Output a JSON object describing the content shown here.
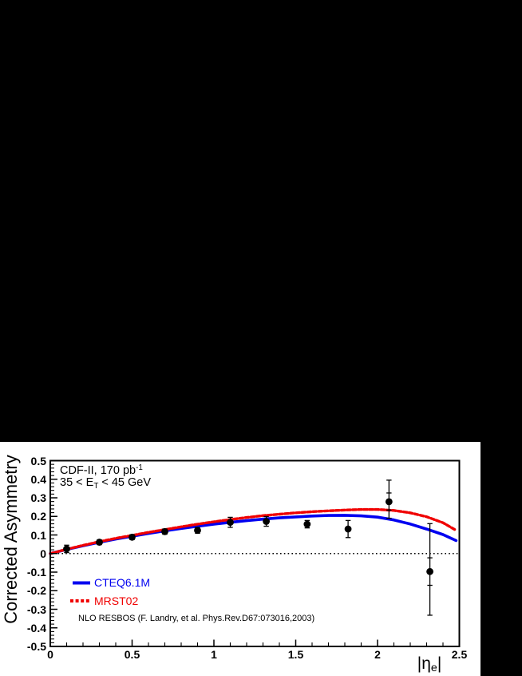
{
  "canvas": {
    "background": "#000000",
    "panel_background": "#ffffff",
    "frame_color": "#000000"
  },
  "chart_data": {
    "type": "line",
    "title": "",
    "ylabel": "Corrected Asymmetry",
    "xlabel_parts": [
      {
        "t": "|"
      },
      {
        "t": "η"
      },
      {
        "t": "e",
        "s": "sub"
      },
      {
        "t": "|"
      }
    ],
    "annotations": [
      {
        "parts": [
          {
            "t": "CDF-II, 170 pb"
          },
          {
            "t": "-1",
            "s": "sup"
          }
        ]
      },
      {
        "parts": [
          {
            "t": "35 < E"
          },
          {
            "t": "T",
            "s": "sub"
          },
          {
            "t": " < 45 GeV"
          }
        ]
      }
    ],
    "footnote": "NLO RESBOS (F. Landry, et al. Phys.Rev.D67:073016,2003)",
    "x_axis": {
      "min": 0,
      "max": 2.5,
      "major_tick_values": [
        0,
        0.5,
        1,
        1.5,
        2,
        2.5
      ],
      "major_tick_labels": [
        "0",
        "0.5",
        "1",
        "1.5",
        "2",
        "2.5"
      ],
      "minor_tick_step": 0.1
    },
    "y_axis": {
      "min": -0.5,
      "max": 0.5,
      "major_tick_values": [
        0.5,
        0.4,
        0.3,
        0.2,
        0.1,
        0,
        -0.1,
        -0.2,
        -0.3,
        -0.4,
        -0.5
      ],
      "major_tick_labels": [
        "0.5",
        "0.4",
        "0.3",
        "0.2",
        "0.1",
        "0",
        "-0.1",
        "-0.2",
        "-0.3",
        "-0.4",
        "-0.5"
      ],
      "minor_tick_step": 0.02
    },
    "zero_line": {
      "y": 0,
      "style": "dotted",
      "color": "#000000"
    },
    "series": [
      {
        "name": "CTEQ6.1M",
        "color": "#0000f0",
        "style": "solid",
        "points": [
          [
            0,
            0
          ],
          [
            0.1,
            0.022
          ],
          [
            0.2,
            0.042
          ],
          [
            0.3,
            0.061
          ],
          [
            0.4,
            0.078
          ],
          [
            0.5,
            0.093
          ],
          [
            0.6,
            0.108
          ],
          [
            0.7,
            0.122
          ],
          [
            0.8,
            0.135
          ],
          [
            0.9,
            0.147
          ],
          [
            1.0,
            0.158
          ],
          [
            1.1,
            0.168
          ],
          [
            1.2,
            0.177
          ],
          [
            1.3,
            0.185
          ],
          [
            1.4,
            0.192
          ],
          [
            1.5,
            0.197
          ],
          [
            1.6,
            0.202
          ],
          [
            1.7,
            0.205
          ],
          [
            1.8,
            0.206
          ],
          [
            1.9,
            0.203
          ],
          [
            2.0,
            0.196
          ],
          [
            2.1,
            0.181
          ],
          [
            2.2,
            0.159
          ],
          [
            2.3,
            0.132
          ],
          [
            2.4,
            0.102
          ],
          [
            2.48,
            0.07
          ]
        ]
      },
      {
        "name": "MRST02",
        "color": "#f00000",
        "style": "dashed",
        "points": [
          [
            0,
            0
          ],
          [
            0.1,
            0.023
          ],
          [
            0.2,
            0.044
          ],
          [
            0.3,
            0.064
          ],
          [
            0.4,
            0.082
          ],
          [
            0.5,
            0.098
          ],
          [
            0.6,
            0.114
          ],
          [
            0.7,
            0.129
          ],
          [
            0.8,
            0.144
          ],
          [
            0.9,
            0.158
          ],
          [
            1.0,
            0.171
          ],
          [
            1.1,
            0.183
          ],
          [
            1.2,
            0.194
          ],
          [
            1.3,
            0.204
          ],
          [
            1.4,
            0.212
          ],
          [
            1.5,
            0.219
          ],
          [
            1.6,
            0.225
          ],
          [
            1.7,
            0.23
          ],
          [
            1.8,
            0.234
          ],
          [
            1.9,
            0.237
          ],
          [
            2.0,
            0.237
          ],
          [
            2.1,
            0.232
          ],
          [
            2.2,
            0.219
          ],
          [
            2.3,
            0.198
          ],
          [
            2.4,
            0.166
          ],
          [
            2.48,
            0.125
          ]
        ]
      }
    ],
    "measurements": {
      "marker": "filled-circle",
      "color": "#000000",
      "points": [
        {
          "x": 0.1,
          "y": 0.025,
          "eu": 0.02,
          "ed": 0.02
        },
        {
          "x": 0.3,
          "y": 0.061,
          "eu": 0.013,
          "ed": 0.013
        },
        {
          "x": 0.5,
          "y": 0.088,
          "eu": 0.013,
          "ed": 0.013
        },
        {
          "x": 0.7,
          "y": 0.118,
          "eu": 0.014,
          "ed": 0.014
        },
        {
          "x": 0.9,
          "y": 0.125,
          "eu": 0.016,
          "ed": 0.016
        },
        {
          "x": 1.1,
          "y": 0.168,
          "eu": 0.027,
          "ed": 0.027
        },
        {
          "x": 1.32,
          "y": 0.173,
          "eu": 0.026,
          "ed": 0.026
        },
        {
          "x": 1.57,
          "y": 0.158,
          "eu": 0.02,
          "ed": 0.02
        },
        {
          "x": 1.82,
          "y": 0.132,
          "eu": 0.046,
          "ed": 0.046
        },
        {
          "x": 2.07,
          "y": 0.279,
          "eu": 0.116,
          "ed": 0.089,
          "inner": [
            0.326,
            0.234
          ]
        },
        {
          "x": 2.32,
          "y": -0.097,
          "eu": 0.258,
          "ed": 0.235,
          "inner": [
            -0.023,
            -0.171
          ]
        }
      ]
    },
    "legend": {
      "position": "bottom-left-inside",
      "entries": [
        {
          "label": "CTEQ6.1M",
          "color": "#0000f0",
          "style": "solid"
        },
        {
          "label": "MRST02",
          "color": "#f00000",
          "style": "dashed"
        }
      ]
    }
  }
}
